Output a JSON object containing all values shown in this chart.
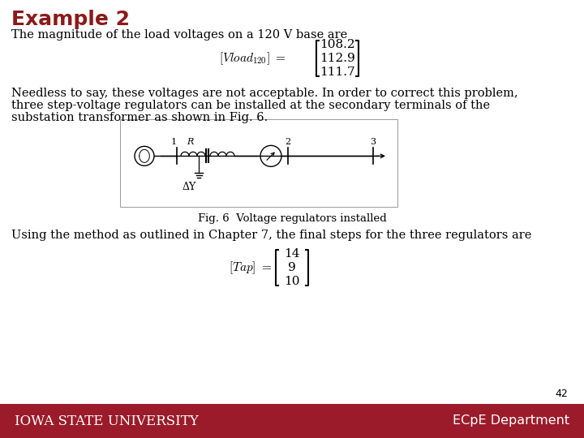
{
  "title": "Example 2",
  "title_color": "#8B1A1A",
  "title_fontsize": 18,
  "bg_color": "#FFFFFF",
  "footer_color": "#9B1B2A",
  "footer_text_left": "Iowa State University",
  "footer_text_right": "ECpE Department",
  "footer_fontsize": 12,
  "page_number": "42",
  "line1": "The magnitude of the load voltages on a 120 V base are",
  "matrix1_values": [
    "108.2",
    "112.9",
    "111.7"
  ],
  "body_line1": "Needless to say, these voltages are not acceptable. In order to correct this problem,",
  "body_line2": "three step-voltage regulators can be installed at the secondary terminals of the",
  "body_line3": "substation transformer as shown in Fig. 6.",
  "fig_caption": "Fig. 6  Voltage regulators installed",
  "line2": "Using the method as outlined in Chapter 7, the final steps for the three regulators are",
  "matrix2_values": [
    "14",
    "9",
    "10"
  ],
  "text_color": "#000000",
  "body_fontsize": 10.5
}
